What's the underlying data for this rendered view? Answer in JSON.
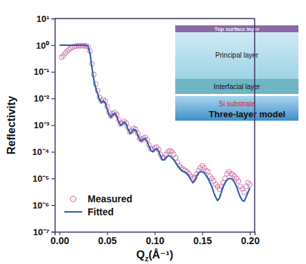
{
  "chart_data": {
    "type": "scatter",
    "x_label": "Qz(Å⁻¹)",
    "y_label": "Reflectivity",
    "log": "y",
    "legend": "bottom-left",
    "xlim": [
      -0.005,
      0.205
    ],
    "ylim": [
      1e-07,
      10
    ],
    "xticks": [
      {
        "value": 0,
        "label": "0.00"
      },
      {
        "value": 0.05,
        "label": "0.05"
      },
      {
        "value": 0.1,
        "label": "0.10"
      },
      {
        "value": 0.15,
        "label": "0.15"
      },
      {
        "value": 0.2,
        "label": "0.20"
      }
    ],
    "yticks": [
      {
        "value": 10,
        "label": "10¹"
      },
      {
        "value": 1,
        "label": "10⁰"
      },
      {
        "value": 0.1,
        "label": "10⁻¹"
      },
      {
        "value": 0.01,
        "label": "10⁻²"
      },
      {
        "value": 0.001,
        "label": "10⁻³"
      },
      {
        "value": 0.0001,
        "label": "10⁻⁴"
      },
      {
        "value": 1e-05,
        "label": "10⁻⁵"
      },
      {
        "value": 1e-06,
        "label": "10⁻⁶"
      },
      {
        "value": 1e-07,
        "label": "10⁻⁷"
      }
    ],
    "annotations": [
      "Top surface layer",
      "Principal layer",
      "Interfacial layer",
      "Si substrate",
      "Three-layer model"
    ],
    "x": [
      0,
      0.002,
      0.004,
      0.006,
      0.008,
      0.01,
      0.012,
      0.014,
      0.016,
      0.018,
      0.02,
      0.022,
      0.024,
      0.026,
      0.028,
      0.03,
      0.032,
      0.034,
      0.036,
      0.038,
      0.04,
      0.042,
      0.044,
      0.046,
      0.048,
      0.05,
      0.052,
      0.054,
      0.056,
      0.058,
      0.06,
      0.062,
      0.064,
      0.066,
      0.068,
      0.07,
      0.072,
      0.074,
      0.076,
      0.078,
      0.08,
      0.082,
      0.084,
      0.086,
      0.088,
      0.09,
      0.092,
      0.094,
      0.096,
      0.098,
      0.1,
      0.102,
      0.104,
      0.106,
      0.108,
      0.11,
      0.112,
      0.114,
      0.116,
      0.118,
      0.12,
      0.122,
      0.124,
      0.126,
      0.128,
      0.13,
      0.132,
      0.134,
      0.136,
      0.138,
      0.14,
      0.142,
      0.144,
      0.146,
      0.148,
      0.15,
      0.152,
      0.154,
      0.156,
      0.158,
      0.16,
      0.162,
      0.164,
      0.166,
      0.168,
      0.17,
      0.172,
      0.174,
      0.176,
      0.178,
      0.18,
      0.182,
      0.184,
      0.186,
      0.188,
      0.19,
      0.192,
      0.194,
      0.196,
      0.198,
      0.2
    ],
    "series": [
      {
        "name": "Measured",
        "type": "scatter",
        "marker": "circle",
        "color": "#d070a8",
        "values": [
          null,
          0.35,
          0.4,
          0.5,
          0.6,
          0.7,
          0.78,
          0.85,
          0.9,
          0.93,
          0.95,
          0.95,
          0.95,
          0.95,
          0.93,
          0.88,
          0.6,
          0.2,
          0.08,
          0.035,
          0.02,
          0.011,
          0.008,
          0.009,
          0.008,
          0.005,
          0.003,
          0.0022,
          0.0027,
          0.003,
          0.0025,
          0.0016,
          0.0011,
          0.0012,
          0.0014,
          0.0012,
          0.0008,
          0.00055,
          0.0006,
          0.00075,
          0.0007,
          0.0005,
          0.00032,
          0.00028,
          0.00032,
          0.00035,
          0.00028,
          0.00018,
          0.00013,
          0.00012,
          0.00014,
          0.00015,
          0.00012,
          8e-05,
          6e-05,
          6e-05,
          8e-05,
          0.0001,
          0.00011,
          0.0001,
          8e-05,
          6e-05,
          4e-05,
          3e-05,
          2.5e-05,
          2.2e-05,
          2e-05,
          1.8e-05,
          1.5e-05,
          1.2e-05,
          1e-05,
          1.1e-05,
          1.5e-05,
          2e-05,
          2.5e-05,
          3e-05,
          2.5e-05,
          2e-05,
          1.8e-05,
          1.2e-05,
          1e-05,
          8e-06,
          6e-06,
          5e-06,
          4e-06,
          5e-06,
          7e-06,
          1e-05,
          1.5e-05,
          1.8e-05,
          1.5e-05,
          1.4e-05,
          1.2e-05,
          1e-05,
          8e-06,
          5e-06,
          4e-06,
          3e-06,
          5e-06,
          7e-06,
          6e-06
        ]
      },
      {
        "name": "Fitted",
        "type": "line",
        "line_style": "solid",
        "color": "#2f5fae",
        "values": [
          1,
          1,
          1,
          1,
          1,
          1,
          1,
          1,
          1,
          1,
          1,
          1,
          1,
          1,
          0.98,
          0.9,
          0.5,
          0.15,
          0.05,
          0.025,
          0.015,
          0.009,
          0.007,
          0.008,
          0.007,
          0.004,
          0.0025,
          0.002,
          0.0025,
          0.0028,
          0.0022,
          0.0014,
          0.001,
          0.0011,
          0.0013,
          0.0011,
          0.0007,
          0.0005,
          0.00055,
          0.0007,
          0.00065,
          0.00045,
          0.0003,
          0.00025,
          0.0003,
          0.00032,
          0.00025,
          0.00016,
          0.00011,
          0.0001,
          0.00012,
          0.00013,
          0.00011,
          7e-05,
          5e-05,
          5e-05,
          6e-05,
          7e-05,
          7e-05,
          6e-05,
          5e-05,
          4e-05,
          3e-05,
          2.5e-05,
          2e-05,
          1.8e-05,
          1.7e-05,
          1.5e-05,
          1.2e-05,
          9e-06,
          7e-06,
          8e-06,
          1.2e-05,
          1.6e-05,
          1.8e-05,
          1.8e-05,
          1.6e-05,
          1.3e-05,
          1e-05,
          7e-06,
          5e-06,
          3e-06,
          2e-06,
          1.5e-06,
          1.8e-06,
          3e-06,
          5e-06,
          7e-06,
          9e-06,
          1e-05,
          1e-05,
          9e-06,
          7e-06,
          5e-06,
          3e-06,
          2e-06,
          1.5e-06,
          1.4e-06,
          2e-06,
          3e-06,
          4.5e-06
        ]
      }
    ]
  }
}
